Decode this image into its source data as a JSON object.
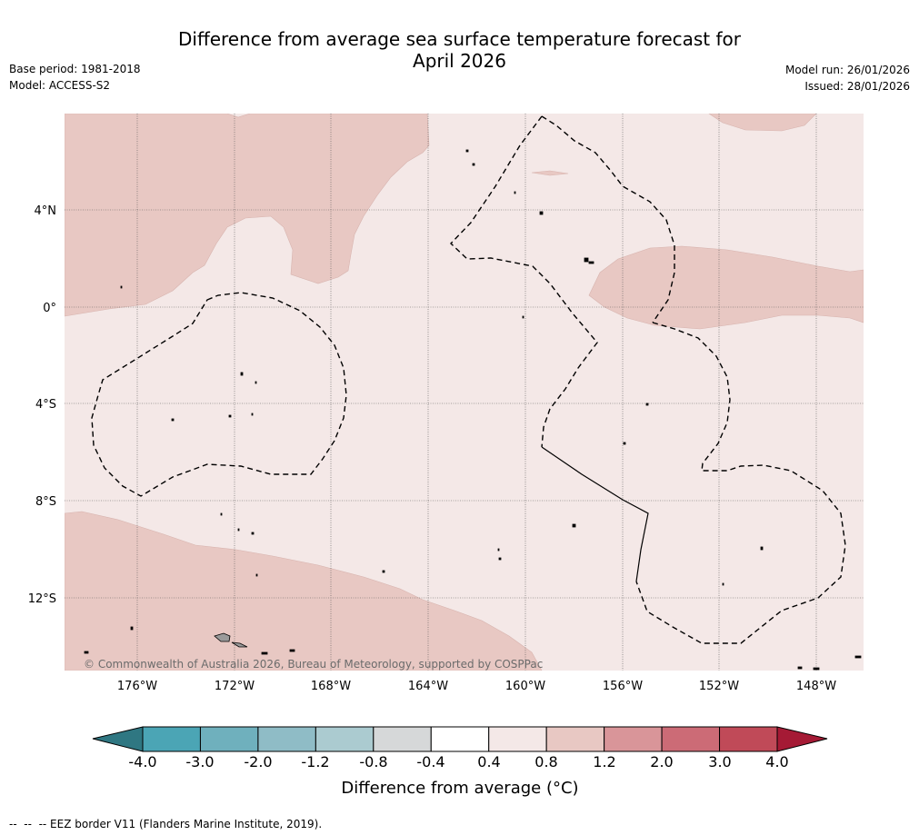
{
  "title_line1": "Difference from average sea surface temperature forecast for",
  "title_line2": "April 2026",
  "left_meta": {
    "base_period": "Base period: 1981-2018",
    "model": "Model: ACCESS-S2"
  },
  "right_meta": {
    "model_run": "Model run: 26/01/2026",
    "issued": "Issued: 28/01/2026"
  },
  "map": {
    "lon_ticks": [
      "176°W",
      "172°W",
      "168°W",
      "164°W",
      "160°W",
      "156°W",
      "152°W",
      "148°W"
    ],
    "lat_ticks": [
      "4°N",
      "0°",
      "4°S",
      "8°S",
      "12°S"
    ],
    "copyright": "© Commonwealth of Australia 2026, Bureau of Meteorology, supported by COSPPac",
    "colors": {
      "band_0_4_to_0_8": "#f4e8e7",
      "band_0_8_to_1_2": "#e8c8c3",
      "land": "#9a9a9a",
      "eez_line": "#000000"
    }
  },
  "colorbar": {
    "label": "Difference from average (°C)",
    "tick_labels": [
      "-4.0",
      "-3.0",
      "-2.0",
      "-1.2",
      "-0.8",
      "-0.4",
      "0.4",
      "0.8",
      "1.2",
      "2.0",
      "3.0",
      "4.0"
    ],
    "low_extend_color": "#2f7782",
    "high_extend_color": "#a51a35",
    "colors": [
      "#4ba5b5",
      "#6fb0bd",
      "#8fbcc6",
      "#abcbd0",
      "#d6d8d9",
      "#ffffff",
      "#f4e8e7",
      "#e8c8c3",
      "#d99599",
      "#cc6b76",
      "#c04a58"
    ]
  },
  "footer": "--  --  -- EEZ border V11 (Flanders Marine Institute, 2019)."
}
